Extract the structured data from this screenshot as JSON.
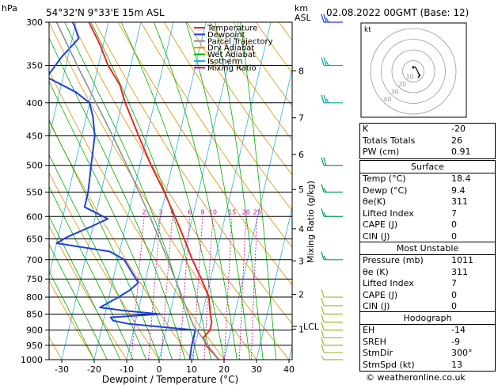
{
  "header": {
    "units_label": "hPa",
    "location": "54°32'N  9°33'E  15m  ASL",
    "km_label": "km",
    "asl_label": "ASL",
    "datetime": "02.08.2022  00GMT  (Base: 12)"
  },
  "chart_data": {
    "type": "line",
    "xlabel": "Dewpoint / Temperature (°C)",
    "ylabel_left": "hPa",
    "ylabel_right": "Mixing Ratio (g/kg)",
    "xlim": [
      -35,
      40
    ],
    "ylim": [
      1000,
      300
    ],
    "x_ticks": [
      "-30",
      "-20",
      "-10",
      "0",
      "10",
      "20",
      "30",
      "40"
    ],
    "pressure_ticks": [
      "300",
      "350",
      "400",
      "450",
      "500",
      "550",
      "600",
      "650",
      "700",
      "750",
      "800",
      "850",
      "900",
      "950",
      "1000"
    ],
    "km_ticks": [
      {
        "label": "8",
        "p": 357
      },
      {
        "label": "7",
        "p": 422
      },
      {
        "label": "6",
        "p": 481
      },
      {
        "label": "5",
        "p": 545
      },
      {
        "label": "4",
        "p": 627
      },
      {
        "label": "3",
        "p": 703
      },
      {
        "label": "2",
        "p": 792
      },
      {
        "label": "1",
        "p": 897
      }
    ],
    "lcl_label": "LCL",
    "lcl_pressure": 888,
    "mixing_ratio_labels": [
      "2",
      "3",
      "4",
      "6",
      "8",
      "10",
      "15",
      "20",
      "25"
    ],
    "legend": [
      {
        "name": "Temperature",
        "color": "#e8282a"
      },
      {
        "name": "Dewpoint",
        "color": "#2040e0"
      },
      {
        "name": "Parcel Trajectory",
        "color": "#909090"
      },
      {
        "name": "Dry Adiabat",
        "color": "#e09000"
      },
      {
        "name": "Wet Adiabat",
        "color": "#00b000"
      },
      {
        "name": "Isotherm",
        "color": "#30b0e0"
      },
      {
        "name": "Mixing Ratio",
        "color": "#d000a0"
      }
    ],
    "legend_position": "top-right",
    "series": [
      {
        "name": "Temperature",
        "color": "#e8282a",
        "points": [
          [
            1000,
            18.4
          ],
          [
            975,
            16
          ],
          [
            950,
            13.5
          ],
          [
            925,
            12
          ],
          [
            900,
            13.5
          ],
          [
            875,
            13.5
          ],
          [
            850,
            12.5
          ],
          [
            800,
            10.8
          ],
          [
            750,
            7.2
          ],
          [
            700,
            3
          ],
          [
            650,
            -1
          ],
          [
            600,
            -5.5
          ],
          [
            550,
            -10.5
          ],
          [
            500,
            -16.5
          ],
          [
            450,
            -22.5
          ],
          [
            400,
            -29
          ],
          [
            375,
            -32
          ],
          [
            350,
            -37
          ],
          [
            325,
            -41
          ],
          [
            300,
            -46
          ]
        ]
      },
      {
        "name": "Dewpoint",
        "color": "#2040e0",
        "points": [
          [
            1000,
            9.4
          ],
          [
            950,
            9
          ],
          [
            925,
            9
          ],
          [
            900,
            9
          ],
          [
            880,
            -12
          ],
          [
            870,
            -17
          ],
          [
            860,
            -18
          ],
          [
            850,
            -3
          ],
          [
            840,
            -14
          ],
          [
            830,
            -22
          ],
          [
            800,
            -17
          ],
          [
            780,
            -14
          ],
          [
            760,
            -12
          ],
          [
            700,
            -18
          ],
          [
            680,
            -23
          ],
          [
            660,
            -40
          ],
          [
            645,
            -37
          ],
          [
            620,
            -30
          ],
          [
            605,
            -26
          ],
          [
            580,
            -34
          ],
          [
            550,
            -34
          ],
          [
            500,
            -35
          ],
          [
            450,
            -36
          ],
          [
            420,
            -38
          ],
          [
            400,
            -40
          ],
          [
            385,
            -45
          ],
          [
            365,
            -55
          ],
          [
            340,
            -52
          ],
          [
            318,
            -48
          ],
          [
            305,
            -50
          ],
          [
            300,
            -51
          ]
        ]
      },
      {
        "name": "Parcel Trajectory",
        "color": "#909090",
        "points": [
          [
            1000,
            18.4
          ],
          [
            950,
            13.9
          ],
          [
            900,
            9.5
          ],
          [
            888,
            8.3
          ],
          [
            850,
            5.8
          ],
          [
            800,
            2.6
          ],
          [
            750,
            -0.9
          ],
          [
            700,
            -4.6
          ],
          [
            650,
            -8.7
          ],
          [
            600,
            -13.2
          ],
          [
            550,
            -18.3
          ],
          [
            500,
            -24
          ],
          [
            450,
            -30.5
          ],
          [
            400,
            -38
          ],
          [
            350,
            -46.5
          ],
          [
            300,
            -56
          ]
        ]
      }
    ],
    "wind_barbs": [
      {
        "p": 1000,
        "dir": 210,
        "spd": 5
      },
      {
        "p": 975,
        "dir": 220,
        "spd": 10
      },
      {
        "p": 950,
        "dir": 230,
        "spd": 10
      },
      {
        "p": 925,
        "dir": 240,
        "spd": 10
      },
      {
        "p": 900,
        "dir": 250,
        "spd": 10
      },
      {
        "p": 875,
        "dir": 260,
        "spd": 10
      },
      {
        "p": 850,
        "dir": 270,
        "spd": 10
      },
      {
        "p": 825,
        "dir": 280,
        "spd": 10
      },
      {
        "p": 800,
        "dir": 290,
        "spd": 10
      },
      {
        "p": 700,
        "dir": 290,
        "spd": 15
      },
      {
        "p": 600,
        "dir": 300,
        "spd": 15
      },
      {
        "p": 550,
        "dir": 290,
        "spd": 15
      },
      {
        "p": 500,
        "dir": 290,
        "spd": 20
      },
      {
        "p": 400,
        "dir": 300,
        "spd": 25
      },
      {
        "p": 350,
        "dir": 300,
        "spd": 25
      },
      {
        "p": 300,
        "dir": 300,
        "spd": 25
      }
    ]
  },
  "hodograph": {
    "unit_label": "kt",
    "ring_labels": [
      "10",
      "20",
      "30",
      "40"
    ]
  },
  "indices": {
    "top": [
      {
        "label": "K",
        "value": "-20"
      },
      {
        "label": "Totals Totals",
        "value": "26"
      },
      {
        "label": "PW (cm)",
        "value": "0.91"
      }
    ],
    "surface": {
      "title": "Surface",
      "rows": [
        {
          "label": "Temp (°C)",
          "value": "18.4"
        },
        {
          "label": "Dewp (°C)",
          "value": "9.4"
        },
        {
          "label": "θe(K)",
          "value": "311"
        },
        {
          "label": "Lifted Index",
          "value": "7"
        },
        {
          "label": "CAPE (J)",
          "value": "0"
        },
        {
          "label": "CIN (J)",
          "value": "0"
        }
      ]
    },
    "most_unstable": {
      "title": "Most Unstable",
      "rows": [
        {
          "label": "Pressure (mb)",
          "value": "1011"
        },
        {
          "label": "θe (K)",
          "value": "311"
        },
        {
          "label": "Lifted Index",
          "value": "7"
        },
        {
          "label": "CAPE (J)",
          "value": "0"
        },
        {
          "label": "CIN (J)",
          "value": "0"
        }
      ]
    },
    "hodograph_box": {
      "title": "Hodograph",
      "rows": [
        {
          "label": "EH",
          "value": "-14"
        },
        {
          "label": "SREH",
          "value": "-9"
        },
        {
          "label": "StmDir",
          "value": "300°"
        },
        {
          "label": "StmSpd (kt)",
          "value": "13"
        }
      ]
    }
  },
  "footer": {
    "credit": "© weatheronline.co.uk"
  }
}
